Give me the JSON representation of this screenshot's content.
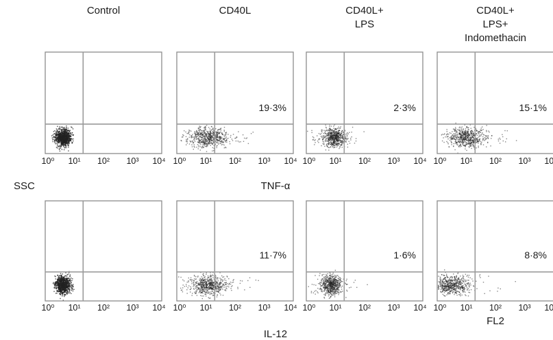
{
  "conditions": [
    [
      "Control"
    ],
    [
      "CD40L"
    ],
    [
      "CD40L+",
      "LPS"
    ],
    [
      "CD40L+",
      "LPS+",
      "Indomethacin"
    ]
  ],
  "y_side_label": "SSC",
  "row_labels": [
    "TNF-α",
    "IL-12"
  ],
  "bottom_axis_label": "FL2",
  "tick_labels": [
    "10⁰",
    "10¹",
    "10²",
    "10³",
    "10⁴"
  ],
  "chart_data": [
    {
      "type": "scatter",
      "row": "TNF-α",
      "panels": [
        {
          "condition": "Control",
          "quadrant_percent": null,
          "x_scale": "log",
          "xlim": [
            1,
            10000
          ],
          "gate_x": 20,
          "gate_y": 20,
          "population_center_fl2": 4,
          "spread": "tight"
        },
        {
          "condition": "CD40L",
          "quadrant_percent": "19·3%",
          "x_scale": "log",
          "xlim": [
            1,
            10000
          ],
          "gate_x": 20,
          "gate_y": 20,
          "population_center_fl2": 12,
          "spread": "wide"
        },
        {
          "condition": "CD40L+ LPS",
          "quadrant_percent": "2·3%",
          "x_scale": "log",
          "xlim": [
            1,
            10000
          ],
          "gate_x": 20,
          "gate_y": 20,
          "population_center_fl2": 9,
          "spread": "narrow"
        },
        {
          "condition": "CD40L+ LPS+ Indomethacin",
          "quadrant_percent": "15·1%",
          "x_scale": "log",
          "xlim": [
            1,
            10000
          ],
          "gate_x": 20,
          "gate_y": 20,
          "population_center_fl2": 10,
          "spread": "wide"
        }
      ]
    },
    {
      "type": "scatter",
      "row": "IL-12",
      "panels": [
        {
          "condition": "Control",
          "quadrant_percent": null,
          "x_scale": "log",
          "xlim": [
            1,
            10000
          ],
          "gate_x": 20,
          "gate_y": 20,
          "population_center_fl2": 4,
          "spread": "tight"
        },
        {
          "condition": "CD40L",
          "quadrant_percent": "11·7%",
          "x_scale": "log",
          "xlim": [
            1,
            10000
          ],
          "gate_x": 20,
          "gate_y": 20,
          "population_center_fl2": 12,
          "spread": "wide"
        },
        {
          "condition": "CD40L+ LPS",
          "quadrant_percent": "1·6%",
          "x_scale": "log",
          "xlim": [
            1,
            10000
          ],
          "gate_x": 20,
          "gate_y": 20,
          "population_center_fl2": 7,
          "spread": "narrow"
        },
        {
          "condition": "CD40L+ LPS+ Indomethacin",
          "quadrant_percent": "8·8%",
          "x_scale": "log",
          "xlim": [
            1,
            10000
          ],
          "gate_x": 20,
          "gate_y": 20,
          "population_center_fl2": 3,
          "spread": "wide"
        }
      ]
    }
  ]
}
